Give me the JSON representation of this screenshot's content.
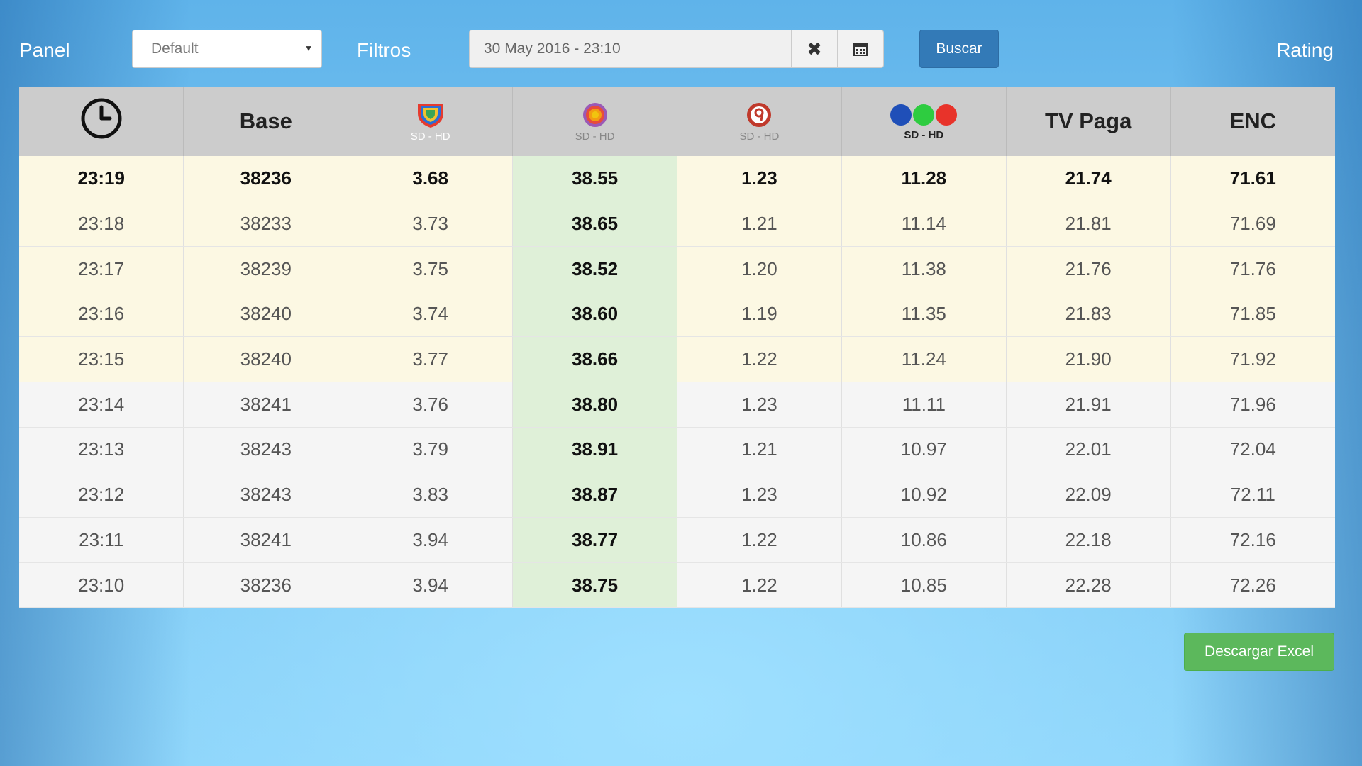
{
  "header": {
    "panel_label": "Panel",
    "panel_select_value": "Default",
    "filtros_label": "Filtros",
    "date_value": "30 May 2016 - 23:10",
    "buscar_label": "Buscar",
    "rating_label": "Rating"
  },
  "table": {
    "columns": {
      "time_icon": "clock-icon",
      "base": "Base",
      "ch1_icon": "shield-channel-logo",
      "ch1_sub": "SD - HD",
      "ch2_icon": "sun-channel-logo",
      "ch2_sub": "SD - HD",
      "ch3_icon": "nine-channel-logo",
      "ch3_sub": "SD - HD",
      "ch4_icon": "three-balls-channel-logo",
      "ch4_sub": "SD - HD",
      "tvpaga": "TV Paga",
      "enc": "ENC"
    },
    "rows": [
      [
        "23:19",
        "38236",
        "3.68",
        "38.55",
        "1.23",
        "11.28",
        "21.74",
        "71.61"
      ],
      [
        "23:18",
        "38233",
        "3.73",
        "38.65",
        "1.21",
        "11.14",
        "21.81",
        "71.69"
      ],
      [
        "23:17",
        "38239",
        "3.75",
        "38.52",
        "1.20",
        "11.38",
        "21.76",
        "71.76"
      ],
      [
        "23:16",
        "38240",
        "3.74",
        "38.60",
        "1.19",
        "11.35",
        "21.83",
        "71.85"
      ],
      [
        "23:15",
        "38240",
        "3.77",
        "38.66",
        "1.22",
        "11.24",
        "21.90",
        "71.92"
      ],
      [
        "23:14",
        "38241",
        "3.76",
        "38.80",
        "1.23",
        "11.11",
        "21.91",
        "71.96"
      ],
      [
        "23:13",
        "38243",
        "3.79",
        "38.91",
        "1.21",
        "10.97",
        "22.01",
        "72.04"
      ],
      [
        "23:12",
        "38243",
        "3.83",
        "38.87",
        "1.23",
        "10.92",
        "22.09",
        "72.11"
      ],
      [
        "23:11",
        "38241",
        "3.94",
        "38.77",
        "1.22",
        "10.86",
        "22.18",
        "72.16"
      ],
      [
        "23:10",
        "38236",
        "3.94",
        "38.75",
        "1.22",
        "10.85",
        "22.28",
        "72.26"
      ]
    ]
  },
  "footer": {
    "excel_label": "Descargar Excel"
  },
  "colors": {
    "primary": "#337ab7",
    "success": "#5cb85c",
    "highlight_row": "#fcf8e3",
    "highlight_column": "#dff0d8"
  }
}
